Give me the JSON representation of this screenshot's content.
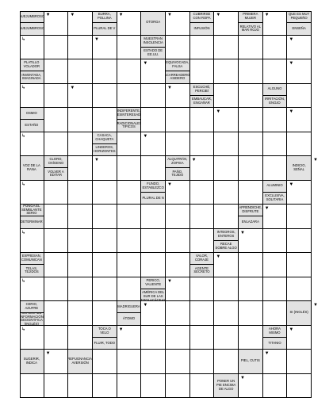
{
  "puzzle": {
    "clues": [
      {
        "r": 0,
        "c": 0,
        "texts": [
          "QUEJUMBROSO",
          "QUEJUMBROSO"
        ]
      },
      {
        "r": 0,
        "c": 3,
        "texts": [
          "BURRA, POLLINA",
          "PLURAL DE V"
        ]
      },
      {
        "r": 0,
        "c": 5,
        "texts": [
          "OTORGA"
        ]
      },
      {
        "r": 0,
        "c": 7,
        "texts": [
          "CUBRIRSE CON ROPA",
          "INFUSIÓN"
        ]
      },
      {
        "r": 0,
        "c": 9,
        "texts": [
          "PRIMERA MUJER",
          "RELATIVO AL MAR ROJO"
        ]
      },
      {
        "r": 0,
        "c": 11,
        "texts": [
          "QUE ES MUY PEQUEÑO",
          "ENSEÑA"
        ]
      },
      {
        "r": 1,
        "c": 5,
        "texts": [
          "MUESTRAN INSOLENCIA",
          "ESTADO DE EE.UU."
        ]
      },
      {
        "r": 2,
        "c": 0,
        "texts": [
          "PLATILLO VOLADOR",
          "INVENTADA, IMAGINADA"
        ]
      },
      {
        "r": 2,
        "c": 6,
        "texts": [
          "EQUIVOCADA, FALSA",
          "ACARREADERO, ASIDERO"
        ]
      },
      {
        "r": 3,
        "c": 7,
        "texts": [
          "ESCUCHÉ, PERCIBÍ",
          "EMBAUCAR, ENGAÑAR"
        ]
      },
      {
        "r": 3,
        "c": 10,
        "texts": [
          "ALGUNO",
          "IRRITACIÓN, ENOJO"
        ]
      },
      {
        "r": 4,
        "c": 0,
        "texts": [
          "OSMIO",
          "ESTAÑO"
        ]
      },
      {
        "r": 4,
        "c": 4,
        "texts": [
          "INDIFERENTE, DESINTERESADO",
          "TRADICIONALES, TÍPICOS"
        ]
      },
      {
        "r": 5,
        "c": 3,
        "texts": [
          "CASACA, CHAQUETA",
          "LINDEROS, HORIZONTES"
        ]
      },
      {
        "r": 5,
        "c": 12,
        "texts": [
          "INDEMNE, INTACTO"
        ]
      },
      {
        "r": 6,
        "c": 0,
        "texts": [
          "VOZ DE LA RANA"
        ]
      },
      {
        "r": 6,
        "c": 1,
        "texts": [
          "CLORO, OXÍGENO",
          "VOLVER A EDITAR"
        ]
      },
      {
        "r": 6,
        "c": 6,
        "texts": [
          "ALQUITRÁN, ZOPISA",
          "PAÑO, TEJIDO"
        ]
      },
      {
        "r": 6,
        "c": 11,
        "texts": [
          "INDICIO, SEÑAL"
        ]
      },
      {
        "r": 7,
        "c": 5,
        "texts": [
          "FUNDO, ESTABLEZCO",
          "PLURAL DE N"
        ]
      },
      {
        "r": 7,
        "c": 10,
        "texts": [
          "ALUMINIO",
          "EXCLUSIVA, SOLITARIA"
        ]
      },
      {
        "r": 8,
        "c": 0,
        "texts": [
          "PONGA EL SEMBLANTE SERIO",
          "DETERMINAR"
        ]
      },
      {
        "r": 8,
        "c": 9,
        "texts": [
          "APRENDICHE, DISFRUTE",
          "ENLAZARA"
        ]
      },
      {
        "r": 9,
        "c": 8,
        "texts": [
          "INTEGROS, ENTEROS",
          "RECAE SOBRE ALGO"
        ]
      },
      {
        "r": 10,
        "c": 0,
        "texts": [
          "EXPRESAN, COMUNICAN",
          "TELAS, TEJIDOS"
        ]
      },
      {
        "r": 10,
        "c": 7,
        "texts": [
          "VALOR, CORAJE",
          "AGENTE SECRETO"
        ]
      },
      {
        "r": 11,
        "c": 5,
        "texts": [
          "PERICO, VALIENTE",
          "ÁRBOL DE AMÉRICA DEL SUR DE LAS TITOLACÁCEAS"
        ]
      },
      {
        "r": 11,
        "c": 12,
        "texts": [
          "MAZO, MARTILLO"
        ]
      },
      {
        "r": 12,
        "c": 0,
        "texts": [
          "CERIO, AZUFRE",
          "SISTEMA DE INFORMACIÓN GEOGRÁFICA (INGLÉS)"
        ]
      },
      {
        "r": 12,
        "c": 4,
        "texts": [
          "MADRIGUERA",
          "ÁTOMO"
        ]
      },
      {
        "r": 12,
        "c": 11,
        "texts": [
          "SI (INGLÉS)"
        ]
      },
      {
        "r": 13,
        "c": 3,
        "texts": [
          "TOCA O VELO",
          "FLUIR, TODO"
        ]
      },
      {
        "r": 13,
        "c": 10,
        "texts": [
          "AHORA MISMO",
          "TITANIO"
        ]
      },
      {
        "r": 14,
        "c": 0,
        "texts": [
          "SUGERIR, INDICA"
        ]
      },
      {
        "r": 14,
        "c": 2,
        "texts": [
          "REPUGNANCIA, AVERSIÓN"
        ]
      },
      {
        "r": 14,
        "c": 9,
        "texts": [
          "PIEL, CUTIS"
        ]
      },
      {
        "r": 15,
        "c": 8,
        "texts": [
          "PONER UN PIE ENCIMA DE ALGO"
        ]
      }
    ],
    "arrows": [
      {
        "r": 0,
        "c": 1,
        "glyph": "▼",
        "pos": "tl"
      },
      {
        "r": 0,
        "c": 2,
        "glyph": "▼",
        "pos": "tl"
      },
      {
        "r": 0,
        "c": 4,
        "glyph": "▼",
        "pos": "tl"
      },
      {
        "r": 0,
        "c": 6,
        "glyph": "▼",
        "pos": "tl"
      },
      {
        "r": 0,
        "c": 8,
        "glyph": "▼",
        "pos": "tl"
      },
      {
        "r": 0,
        "c": 10,
        "glyph": "▼",
        "pos": "tl"
      },
      {
        "r": 1,
        "c": 0,
        "glyph": "↳",
        "pos": "tl"
      },
      {
        "r": 1,
        "c": 3,
        "glyph": "▼",
        "pos": "tl"
      },
      {
        "r": 1,
        "c": 11,
        "glyph": "▼",
        "pos": "tl"
      },
      {
        "r": 2,
        "c": 5,
        "glyph": "▼",
        "pos": "tl"
      },
      {
        "r": 2,
        "c": 11,
        "glyph": "▼",
        "pos": "tl"
      },
      {
        "r": 3,
        "c": 0,
        "glyph": "↳",
        "pos": "tl"
      },
      {
        "r": 3,
        "c": 2,
        "glyph": "▼",
        "pos": "tl"
      },
      {
        "r": 3,
        "c": 6,
        "glyph": "▼",
        "pos": "tl"
      },
      {
        "r": 4,
        "c": 8,
        "glyph": "▼",
        "pos": "tl"
      },
      {
        "r": 4,
        "c": 11,
        "glyph": "▼",
        "pos": "tl"
      },
      {
        "r": 5,
        "c": 0,
        "glyph": "↳",
        "pos": "tl"
      },
      {
        "r": 5,
        "c": 5,
        "glyph": "▼",
        "pos": "tl"
      },
      {
        "r": 6,
        "c": 3,
        "glyph": "▼",
        "pos": "tl"
      },
      {
        "r": 6,
        "c": 7,
        "glyph": "▼",
        "pos": "tl"
      },
      {
        "r": 6,
        "c": 12,
        "glyph": "▼",
        "pos": "tl"
      },
      {
        "r": 7,
        "c": 0,
        "glyph": "↳",
        "pos": "tl"
      },
      {
        "r": 7,
        "c": 6,
        "glyph": "▼",
        "pos": "tl"
      },
      {
        "r": 7,
        "c": 11,
        "glyph": "▼",
        "pos": "tl"
      },
      {
        "r": 8,
        "c": 10,
        "glyph": "▼",
        "pos": "tl"
      },
      {
        "r": 9,
        "c": 0,
        "glyph": "↳",
        "pos": "tl"
      },
      {
        "r": 9,
        "c": 9,
        "glyph": "▼",
        "pos": "tl"
      },
      {
        "r": 10,
        "c": 8,
        "glyph": "▼",
        "pos": "tl"
      },
      {
        "r": 11,
        "c": 0,
        "glyph": "↳",
        "pos": "tl"
      },
      {
        "r": 11,
        "c": 6,
        "glyph": "▼",
        "pos": "tl"
      },
      {
        "r": 12,
        "c": 5,
        "glyph": "▼",
        "pos": "tl"
      },
      {
        "r": 12,
        "c": 12,
        "glyph": "▼",
        "pos": "tl"
      },
      {
        "r": 13,
        "c": 0,
        "glyph": "↳",
        "pos": "tl"
      },
      {
        "r": 13,
        "c": 4,
        "glyph": "▼",
        "pos": "tl"
      },
      {
        "r": 13,
        "c": 11,
        "glyph": "▼",
        "pos": "tl"
      },
      {
        "r": 14,
        "c": 1,
        "glyph": "▼",
        "pos": "tl"
      },
      {
        "r": 14,
        "c": 10,
        "glyph": "▼",
        "pos": "tl"
      },
      {
        "r": 15,
        "c": 9,
        "glyph": "▼",
        "pos": "tl"
      }
    ],
    "colors": {
      "clue_bg": "#e3e3e3",
      "grid_line": "#000000",
      "cell_bg": "#ffffff"
    }
  }
}
